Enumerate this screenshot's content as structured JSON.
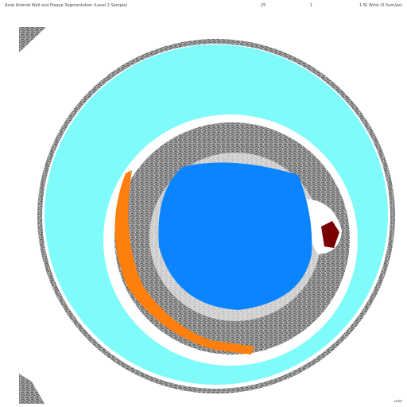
{
  "header": {
    "title": "Axial Arterial Wall and Plaque Segmentation (Level 2 Sample)",
    "scale_labels": [
      "25",
      "1",
      "1.5"
    ],
    "info": "1 Wrist (0.5um/px)"
  },
  "footer": "scale"
}
